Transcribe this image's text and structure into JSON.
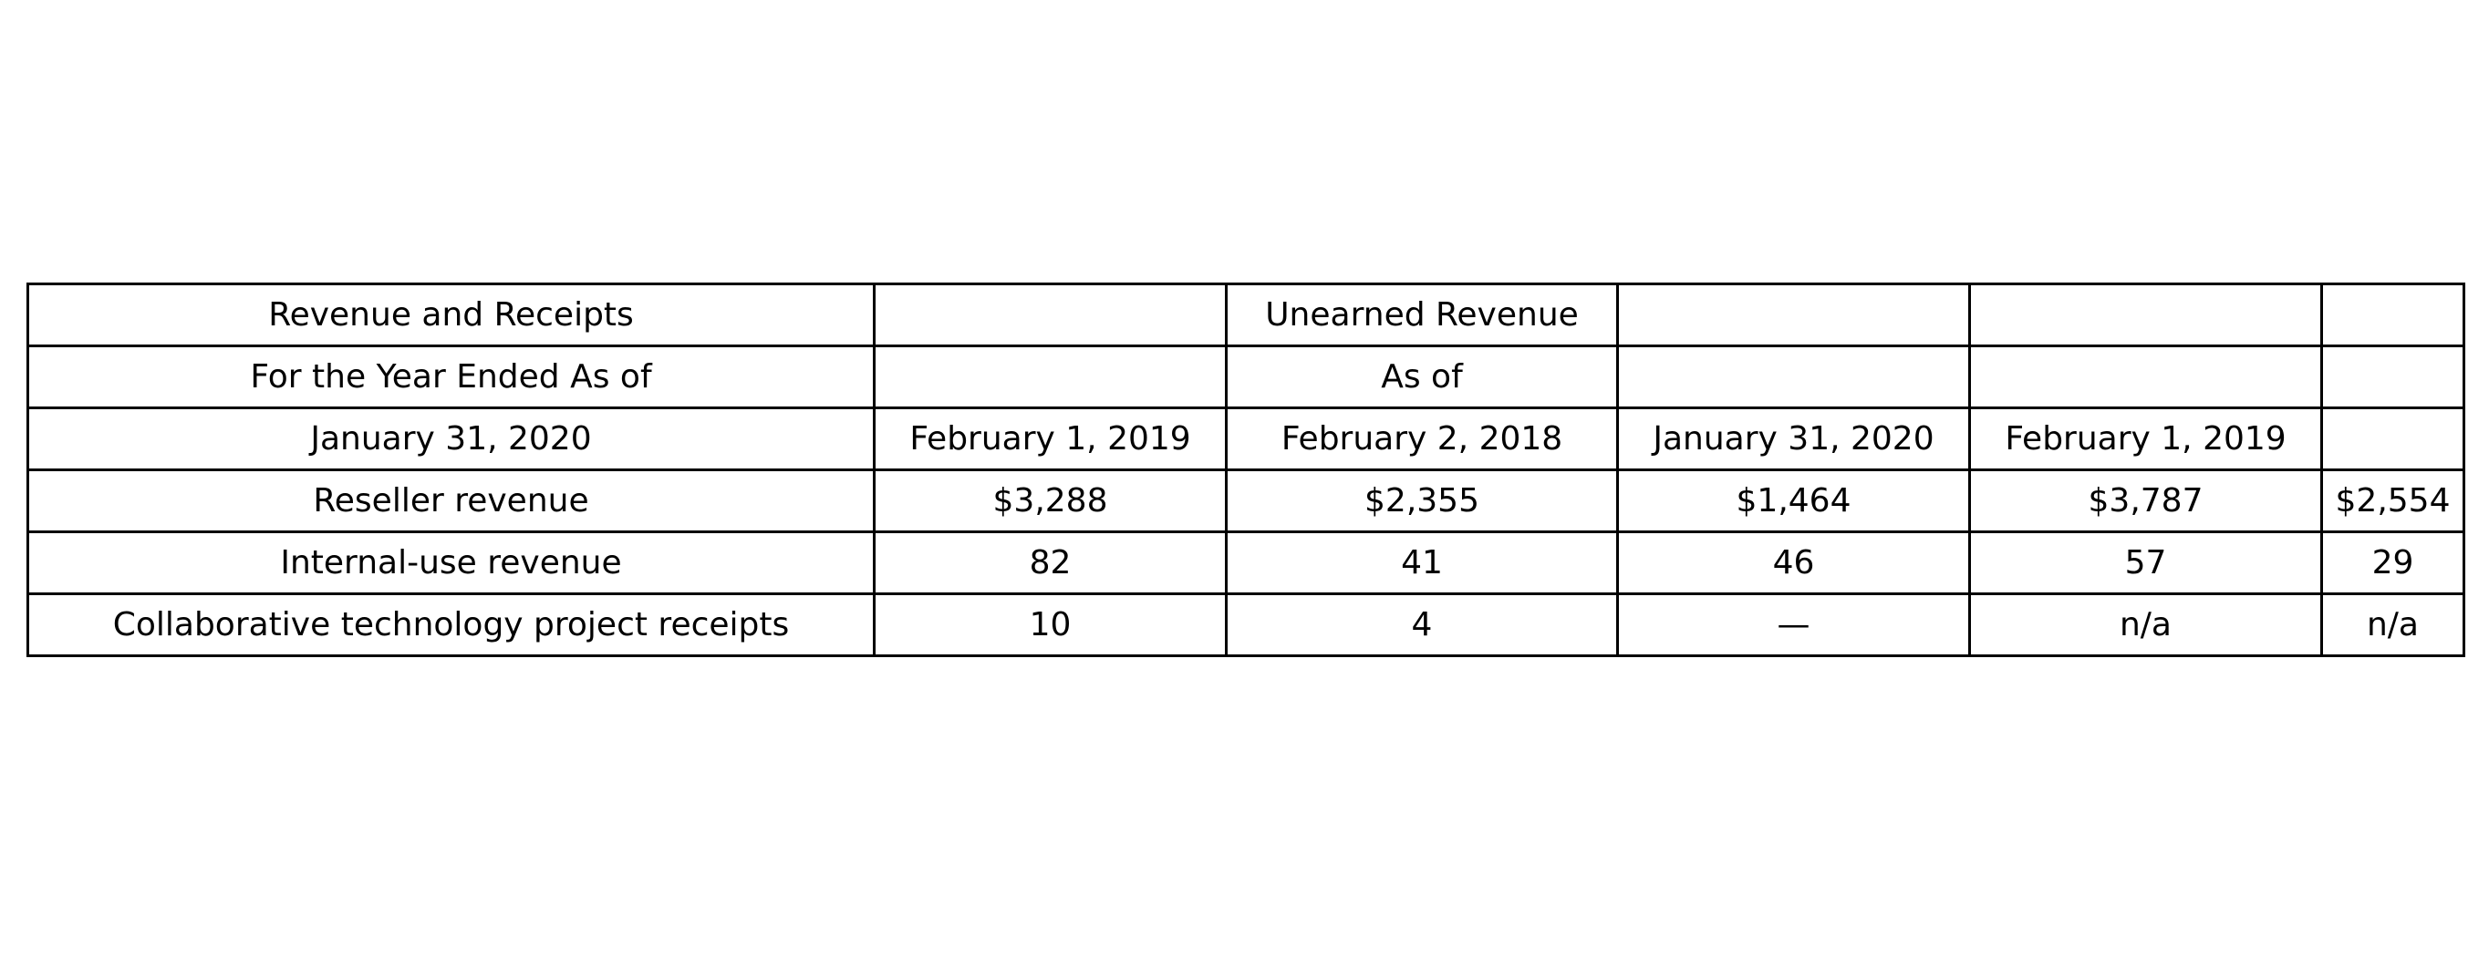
{
  "chart_data": {
    "type": "table",
    "rows": [
      [
        "Revenue and Receipts",
        "",
        "Unearned Revenue",
        "",
        "",
        ""
      ],
      [
        "For the Year Ended As of",
        "",
        "As of",
        "",
        "",
        ""
      ],
      [
        "January 31, 2020",
        "February 1, 2019",
        "February 2, 2018",
        "January 31, 2020",
        "February 1, 2019",
        ""
      ],
      [
        "Reseller revenue",
        "$3,288",
        "$2,355",
        "$1,464",
        "$3,787",
        "$2,554"
      ],
      [
        "Internal-use revenue",
        "82",
        "41",
        "46",
        "57",
        "29"
      ],
      [
        "Collaborative technology project receipts",
        "10",
        "4",
        "—",
        "n/a",
        "n/a"
      ]
    ]
  }
}
